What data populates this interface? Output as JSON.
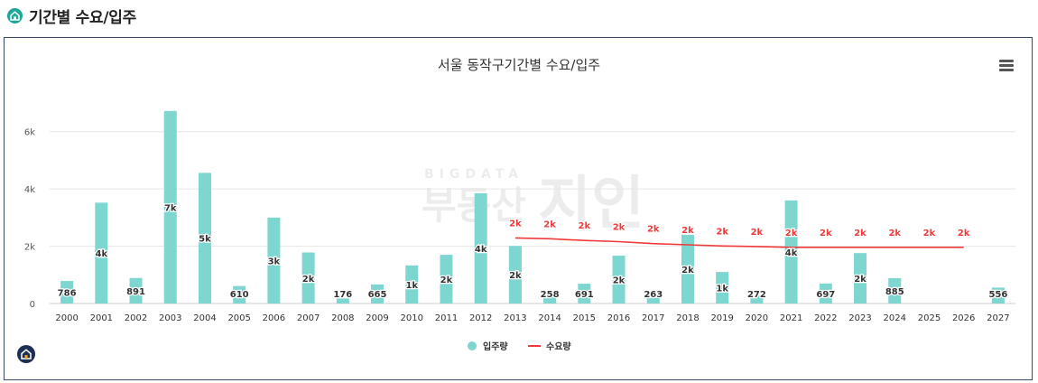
{
  "header": {
    "title": "기간별 수요/입주",
    "icon": "home-icon",
    "accent": "#1fa89a"
  },
  "watermark": {
    "top": "BIGDATA",
    "main": "부동산",
    "brand": "지인"
  },
  "colors": {
    "bar": "#7dd6cf",
    "line": "#f03a3a",
    "label_red": "#f03a3a",
    "grid": "#e6e6e6"
  },
  "chart_data": {
    "type": "bar",
    "title": "서울 동작구기간별 수요/입주",
    "categories": [
      "2000",
      "2001",
      "2002",
      "2003",
      "2004",
      "2005",
      "2006",
      "2007",
      "2008",
      "2009",
      "2010",
      "2011",
      "2012",
      "2013",
      "2014",
      "2015",
      "2016",
      "2017",
      "2018",
      "2019",
      "2020",
      "2021",
      "2022",
      "2023",
      "2024",
      "2025",
      "2026",
      "2027"
    ],
    "ylim": [
      0,
      7000
    ],
    "yticks": [
      0,
      2000,
      4000,
      6000
    ],
    "ytick_labels": [
      "0",
      "2k",
      "4k",
      "6k"
    ],
    "grid": true,
    "legend_position": "bottom-center",
    "series": [
      {
        "name": "입주량",
        "type": "bar",
        "values": [
          786,
          3520,
          891,
          6720,
          4560,
          610,
          3000,
          1780,
          176,
          665,
          1330,
          1700,
          3850,
          2010,
          258,
          691,
          1670,
          263,
          2400,
          1100,
          272,
          3600,
          697,
          1760,
          885,
          null,
          null,
          556
        ],
        "data_labels": [
          "786",
          "4k",
          "891",
          "7k",
          "5k",
          "610",
          "3k",
          "2k",
          "176",
          "665",
          "1k",
          "2k",
          "4k",
          "2k",
          "258",
          "691",
          "2k",
          "263",
          "2k",
          "1k",
          "272",
          "4k",
          "697",
          "2k",
          "885",
          "",
          "",
          "556"
        ]
      },
      {
        "name": "수요량",
        "type": "line",
        "values": [
          null,
          null,
          null,
          null,
          null,
          null,
          null,
          null,
          null,
          null,
          null,
          null,
          null,
          2290,
          2260,
          2200,
          2160,
          2090,
          2050,
          2010,
          1990,
          1960,
          1960,
          1960,
          1960,
          1960,
          1960,
          null
        ],
        "data_labels": [
          "",
          "",
          "",
          "",
          "",
          "",
          "",
          "",
          "",
          "",
          "",
          "",
          "",
          "2k",
          "2k",
          "2k",
          "2k",
          "2k",
          "2k",
          "2k",
          "2k",
          "2k",
          "2k",
          "2k",
          "2k",
          "2k",
          "2k",
          ""
        ]
      }
    ]
  }
}
